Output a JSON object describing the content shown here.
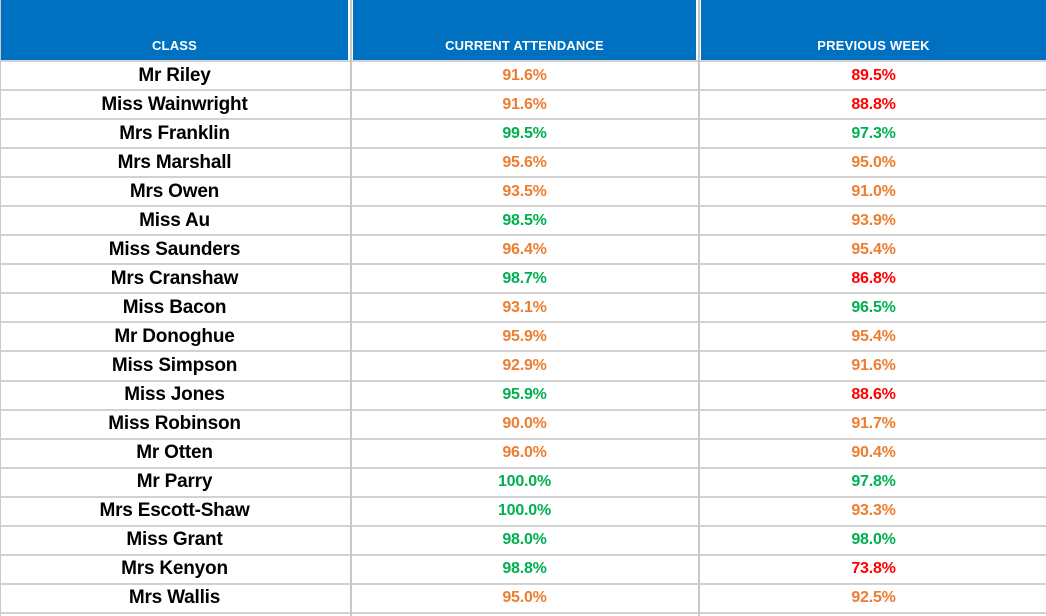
{
  "chart_data": {
    "type": "table",
    "columns": [
      "CLASS",
      "CURRENT ATTENDANCE",
      "PREVIOUS WEEK"
    ],
    "rows": [
      {
        "class": "Mr Riley",
        "current": "91.6%",
        "current_status": "warn",
        "previous": "89.5%",
        "previous_status": "bad"
      },
      {
        "class": "Miss Wainwright",
        "current": "91.6%",
        "current_status": "warn",
        "previous": "88.8%",
        "previous_status": "bad"
      },
      {
        "class": "Mrs Franklin",
        "current": "99.5%",
        "current_status": "good",
        "previous": "97.3%",
        "previous_status": "good"
      },
      {
        "class": "Mrs Marshall",
        "current": "95.6%",
        "current_status": "warn",
        "previous": "95.0%",
        "previous_status": "warn"
      },
      {
        "class": "Mrs Owen",
        "current": "93.5%",
        "current_status": "warn",
        "previous": "91.0%",
        "previous_status": "warn"
      },
      {
        "class": "Miss Au",
        "current": "98.5%",
        "current_status": "good",
        "previous": "93.9%",
        "previous_status": "warn"
      },
      {
        "class": "Miss Saunders",
        "current": "96.4%",
        "current_status": "warn",
        "previous": "95.4%",
        "previous_status": "warn"
      },
      {
        "class": "Mrs Cranshaw",
        "current": "98.7%",
        "current_status": "good",
        "previous": "86.8%",
        "previous_status": "bad"
      },
      {
        "class": "Miss Bacon",
        "current": "93.1%",
        "current_status": "warn",
        "previous": "96.5%",
        "previous_status": "good"
      },
      {
        "class": "Mr Donoghue",
        "current": "95.9%",
        "current_status": "warn",
        "previous": "95.4%",
        "previous_status": "warn"
      },
      {
        "class": "Miss Simpson",
        "current": "92.9%",
        "current_status": "warn",
        "previous": "91.6%",
        "previous_status": "warn"
      },
      {
        "class": "Miss Jones",
        "current": "95.9%",
        "current_status": "good",
        "previous": "88.6%",
        "previous_status": "bad"
      },
      {
        "class": "Miss Robinson",
        "current": "90.0%",
        "current_status": "warn",
        "previous": "91.7%",
        "previous_status": "warn"
      },
      {
        "class": "Mr Otten",
        "current": "96.0%",
        "current_status": "warn",
        "previous": "90.4%",
        "previous_status": "warn"
      },
      {
        "class": "Mr Parry",
        "current": "100.0%",
        "current_status": "good",
        "previous": "97.8%",
        "previous_status": "good"
      },
      {
        "class": "Mrs Escott-Shaw",
        "current": "100.0%",
        "current_status": "good",
        "previous": "93.3%",
        "previous_status": "warn"
      },
      {
        "class": "Miss Grant",
        "current": "98.0%",
        "current_status": "good",
        "previous": "98.0%",
        "previous_status": "good"
      },
      {
        "class": "Mrs Kenyon",
        "current": "98.8%",
        "current_status": "good",
        "previous": "73.8%",
        "previous_status": "bad"
      },
      {
        "class": "Mrs Wallis",
        "current": "95.0%",
        "current_status": "warn",
        "previous": "92.5%",
        "previous_status": "warn"
      }
    ],
    "colors": {
      "header_bg": "#0070c0",
      "header_text": "#ffffff",
      "good": "#00b050",
      "warn": "#ed7d31",
      "bad": "#ff0000",
      "gridline": "#d2d2d2",
      "name_text": "#000000"
    },
    "layout_hints": {
      "grid": "on",
      "header_position": "top",
      "value_alignment": "center"
    }
  }
}
